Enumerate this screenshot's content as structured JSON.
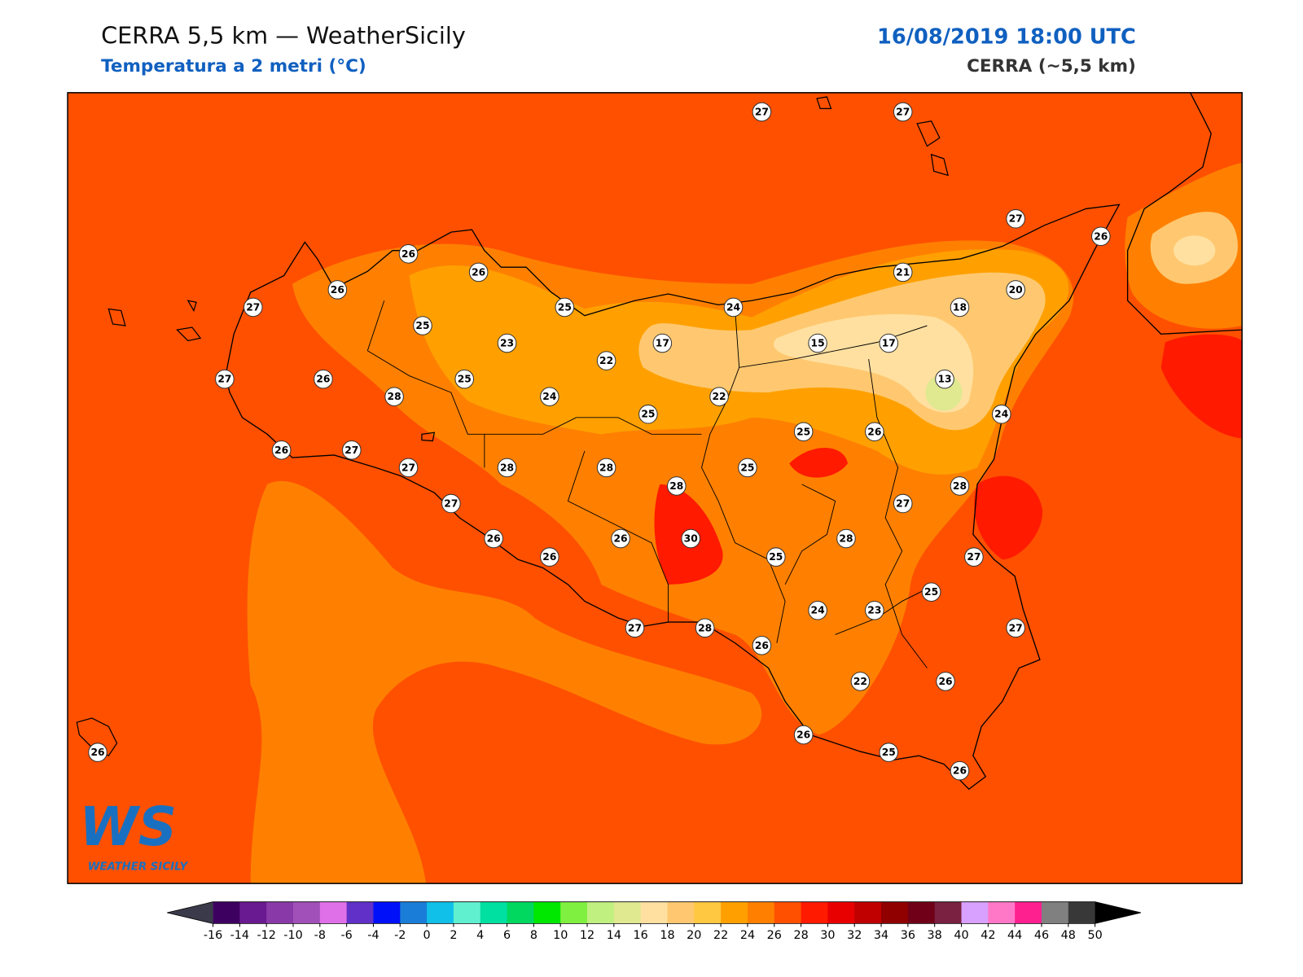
{
  "header": {
    "title": "CERRA 5,5 km — WeatherSicily",
    "subtitle": "Temperatura a 2 metri (°C)",
    "datetime": "16/08/2019 18:00 UTC",
    "model": "CERRA (~5,5 km)"
  },
  "stations": [
    27,
    27,
    27,
    26,
    26,
    26,
    26,
    27,
    25,
    24,
    21,
    20,
    18,
    25,
    23,
    17,
    15,
    17,
    22,
    27,
    26,
    25,
    13,
    28,
    24,
    22,
    25,
    24,
    25,
    26,
    26,
    27,
    27,
    28,
    28,
    25,
    28,
    28,
    27,
    27,
    26,
    26,
    30,
    28,
    26,
    25,
    27,
    25,
    24,
    23,
    27,
    28,
    27,
    26,
    22,
    26,
    26,
    25,
    26,
    26
  ],
  "colorbar": {
    "ticks": [
      -16,
      -14,
      -12,
      -10,
      -8,
      -6,
      -4,
      -2,
      0,
      2,
      4,
      6,
      8,
      10,
      12,
      14,
      16,
      18,
      20,
      22,
      24,
      26,
      28,
      30,
      32,
      34,
      36,
      38,
      40,
      42,
      44,
      46,
      48,
      50
    ],
    "colors": [
      "#3d0060",
      "#6a1a90",
      "#8a3aa8",
      "#a050b8",
      "#e070e8",
      "#6030c8",
      "#0010f8",
      "#1a7ed8",
      "#10c0e8",
      "#60f0d0",
      "#00e0a0",
      "#00d860",
      "#00e800",
      "#80f040",
      "#c0f080",
      "#e0e890",
      "#ffe0a0",
      "#ffc870",
      "#ffc840",
      "#ffa000",
      "#ff8000",
      "#ff5000",
      "#ff1a00",
      "#e80000",
      "#c00000",
      "#900000",
      "#700018",
      "#7a2040",
      "#d8a0ff",
      "#ff78c8",
      "#ff2090",
      "#808080",
      "#383838"
    ],
    "under_color": "#3a3a4a",
    "over_color": "#000000"
  },
  "logo": {
    "mark": "WS",
    "name": "WEATHER SICILY"
  }
}
